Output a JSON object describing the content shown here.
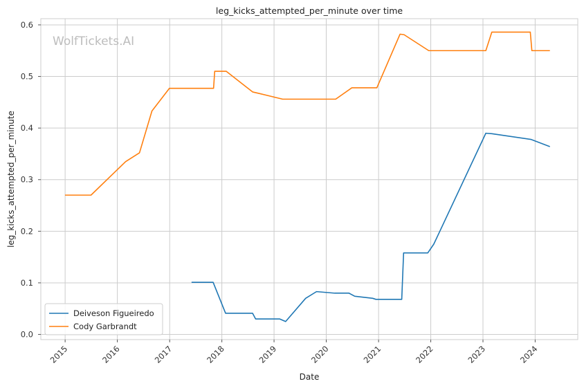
{
  "chart_data": {
    "type": "line",
    "title": "leg_kicks_attempted_per_minute over time",
    "xlabel": "Date",
    "ylabel": "leg_kicks_attempted_per_minute",
    "watermark": "WolfTickets.AI",
    "xlim": [
      "2014-07-15",
      "2024-10-25"
    ],
    "ylim": [
      -0.01,
      0.612
    ],
    "xticks": [
      "2015",
      "2016",
      "2017",
      "2018",
      "2019",
      "2020",
      "2021",
      "2022",
      "2023",
      "2024"
    ],
    "yticks": [
      "0.0",
      "0.1",
      "0.2",
      "0.3",
      "0.4",
      "0.5",
      "0.6"
    ],
    "grid": true,
    "legend_position": "bottom-left",
    "series": [
      {
        "name": "Deiveson Figueiredo",
        "color": "#1f77b4",
        "points": [
          [
            "2017-06-03",
            0.101
          ],
          [
            "2017-11-01",
            0.101
          ],
          [
            "2018-01-27",
            0.041
          ],
          [
            "2018-08-04",
            0.041
          ],
          [
            "2018-08-25",
            0.03
          ],
          [
            "2019-02-09",
            0.03
          ],
          [
            "2019-03-23",
            0.025
          ],
          [
            "2019-08-10",
            0.07
          ],
          [
            "2019-10-25",
            0.083
          ],
          [
            "2020-02-29",
            0.08
          ],
          [
            "2020-06-08",
            0.08
          ],
          [
            "2020-07-18",
            0.074
          ],
          [
            "2020-11-21",
            0.07
          ],
          [
            "2020-12-13",
            0.068
          ],
          [
            "2021-06-12",
            0.068
          ],
          [
            "2021-06-25",
            0.158
          ],
          [
            "2021-12-11",
            0.158
          ],
          [
            "2022-01-22",
            0.175
          ],
          [
            "2023-01-21",
            0.39
          ],
          [
            "2023-03-04",
            0.389
          ],
          [
            "2023-12-02",
            0.378
          ],
          [
            "2024-04-13",
            0.364
          ]
        ]
      },
      {
        "name": "Cody Garbrandt",
        "color": "#ff7f0e",
        "points": [
          [
            "2014-12-31",
            0.27
          ],
          [
            "2015-07-01",
            0.27
          ],
          [
            "2016-02-28",
            0.335
          ],
          [
            "2016-06-04",
            0.352
          ],
          [
            "2016-08-30",
            0.433
          ],
          [
            "2016-12-30",
            0.477
          ],
          [
            "2017-11-04",
            0.477
          ],
          [
            "2017-11-12",
            0.51
          ],
          [
            "2018-02-01",
            0.51
          ],
          [
            "2018-08-04",
            0.47
          ],
          [
            "2018-09-20",
            0.467
          ],
          [
            "2019-03-02",
            0.456
          ],
          [
            "2020-03-07",
            0.456
          ],
          [
            "2020-06-28",
            0.478
          ],
          [
            "2020-12-20",
            0.478
          ],
          [
            "2021-05-31",
            0.582
          ],
          [
            "2021-06-28",
            0.581
          ],
          [
            "2021-12-18",
            0.55
          ],
          [
            "2023-01-21",
            0.55
          ],
          [
            "2023-03-04",
            0.586
          ],
          [
            "2023-11-28",
            0.586
          ],
          [
            "2023-12-09",
            0.55
          ],
          [
            "2024-04-13",
            0.55
          ]
        ]
      }
    ]
  }
}
